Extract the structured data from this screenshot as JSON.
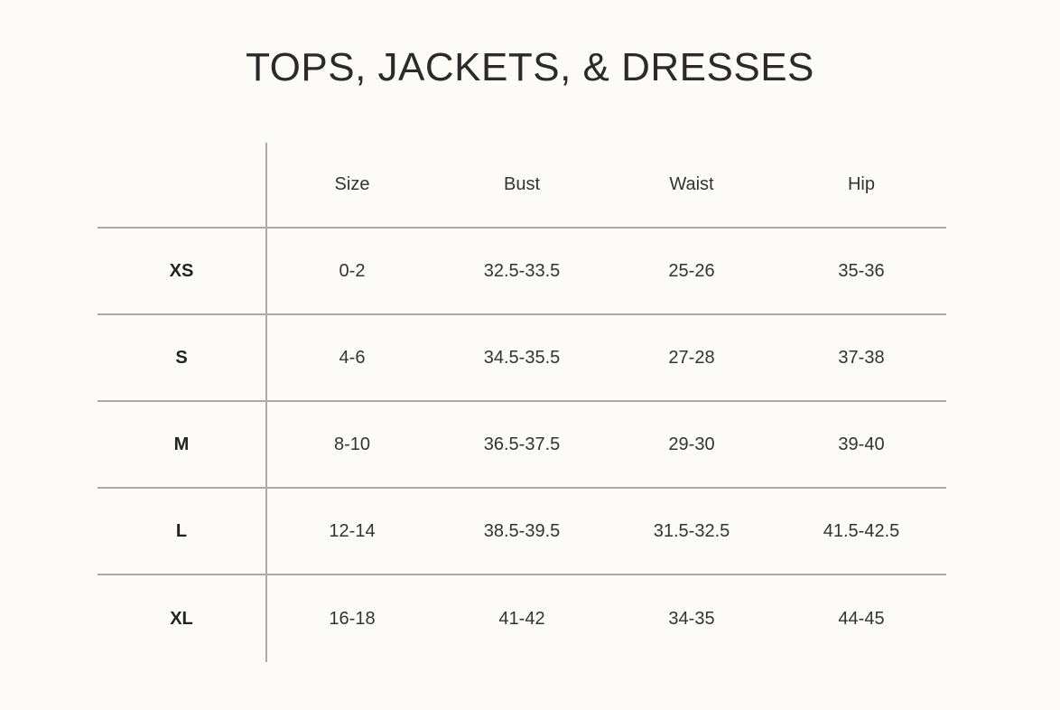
{
  "title": "TOPS, JACKETS, & DRESSES",
  "table": {
    "columns": [
      "",
      "Size",
      "Bust",
      "Waist",
      "Hip"
    ],
    "rows": [
      [
        "XS",
        "0-2",
        "32.5-33.5",
        "25-26",
        "35-36"
      ],
      [
        "S",
        "4-6",
        "34.5-35.5",
        "27-28",
        "37-38"
      ],
      [
        "M",
        "8-10",
        "36.5-37.5",
        "29-30",
        "39-40"
      ],
      [
        "L",
        "12-14",
        "38.5-39.5",
        "31.5-32.5",
        "41.5-42.5"
      ],
      [
        "XL",
        "16-18",
        "41-42",
        "34-35",
        "44-45"
      ]
    ]
  },
  "colors": {
    "background": "#fdfbf7",
    "grid": "#aaaaaa",
    "text": "#2a2a2a"
  }
}
